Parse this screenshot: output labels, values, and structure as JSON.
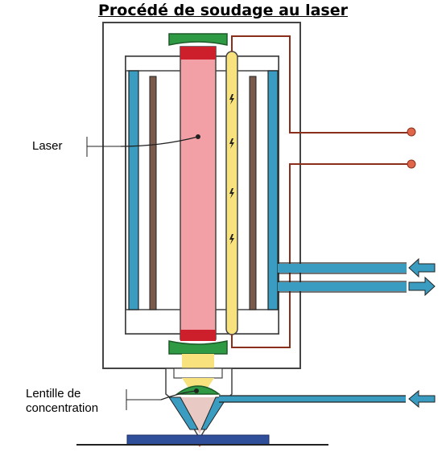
{
  "title": "Procédé de soudage au laser",
  "labels": {
    "laser": "Laser",
    "lens_line1": "Lentille de",
    "lens_line2": "concentration"
  },
  "colors": {
    "laser_beam": "#f2a0a6",
    "laser_end": "#cc1f2b",
    "flash_lamp": "#f7e27d",
    "cooling": "#3a9cc0",
    "mirror": "#2f9a44",
    "electrode": "#8a2f1c",
    "workpiece": "#2f4f9a",
    "outline": "#333333"
  },
  "icons": [
    "lightning-icon",
    "arrow-in-icon",
    "arrow-out-icon"
  ]
}
